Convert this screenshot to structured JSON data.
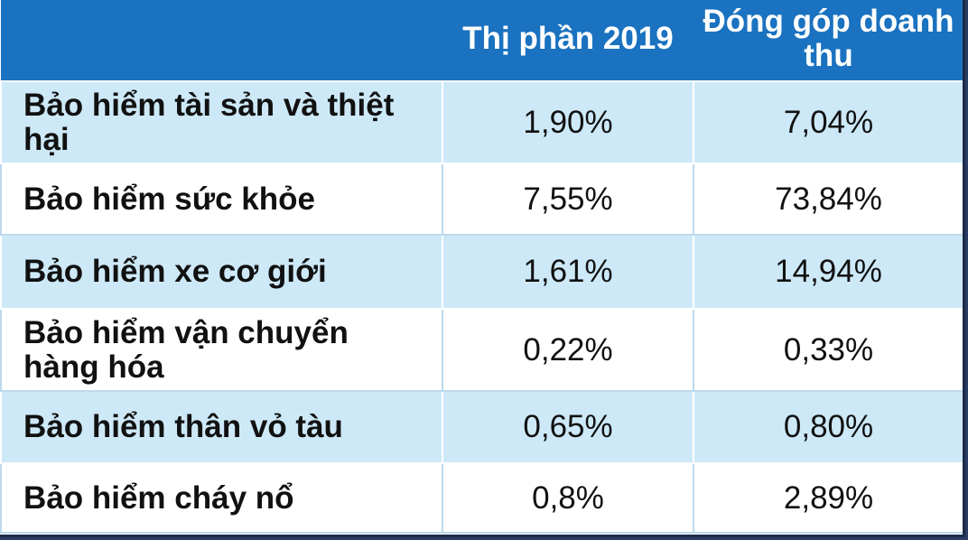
{
  "table": {
    "headers": [
      "",
      "Thị phần 2019",
      "Đóng góp doanh thu"
    ],
    "rows": [
      {
        "label": "Bảo hiểm tài sản và thiệt hại",
        "market_share": "1,90%",
        "revenue_contribution": "7,04%"
      },
      {
        "label": "Bảo hiểm sức khỏe",
        "market_share": "7,55%",
        "revenue_contribution": "73,84%"
      },
      {
        "label": "Bảo hiểm xe cơ giới",
        "market_share": "1,61%",
        "revenue_contribution": "14,94%"
      },
      {
        "label": "Bảo hiểm vận chuyển hàng hóa",
        "market_share": "0,22%",
        "revenue_contribution": "0,33%"
      },
      {
        "label": "Bảo hiểm thân vỏ tàu",
        "market_share": "0,65%",
        "revenue_contribution": "0,80%"
      },
      {
        "label": "Bảo hiểm cháy nổ",
        "market_share": "0,8%",
        "revenue_contribution": "2,89%"
      }
    ]
  },
  "colors": {
    "header_bg": "#1a72c0",
    "header_text": "#ffffff",
    "odd_row_bg": "#cde9f8",
    "even_row_bg": "#ffffff",
    "frame": "#2a3c64"
  }
}
